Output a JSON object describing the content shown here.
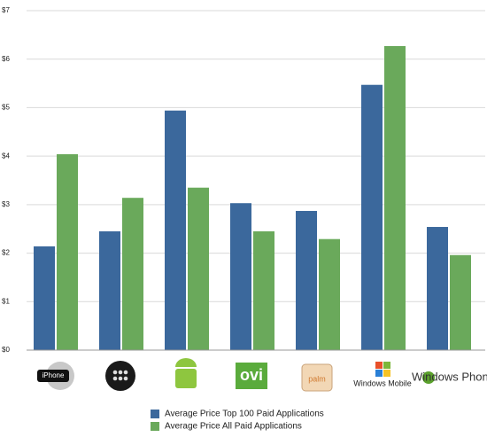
{
  "chart_data": {
    "type": "bar",
    "categories": [
      "iPhone",
      null,
      null,
      "ovi",
      "palm",
      "Windows Mobile",
      "Windows Phone"
    ],
    "series": [
      {
        "name": "Average Price Top 100 Paid Applications",
        "color": "#3b689c",
        "values": [
          2.14,
          2.45,
          4.94,
          3.03,
          2.87,
          5.47,
          2.54
        ]
      },
      {
        "name": "Average Price All Paid Applications",
        "color": "#6aa95b",
        "values": [
          4.04,
          3.14,
          3.35,
          2.45,
          2.29,
          6.27,
          1.96
        ]
      }
    ],
    "ylim": [
      0,
      7
    ],
    "yticks": [
      {
        "value": 0,
        "label": "$0"
      },
      {
        "value": 1,
        "label": "$1"
      },
      {
        "value": 2,
        "label": "$2"
      },
      {
        "value": 3,
        "label": "$3"
      },
      {
        "value": 4,
        "label": "$4"
      },
      {
        "value": 5,
        "label": "$5"
      },
      {
        "value": 6,
        "label": "$6"
      },
      {
        "value": 7,
        "label": "$7"
      }
    ],
    "grid": true,
    "legend": "bottom"
  }
}
